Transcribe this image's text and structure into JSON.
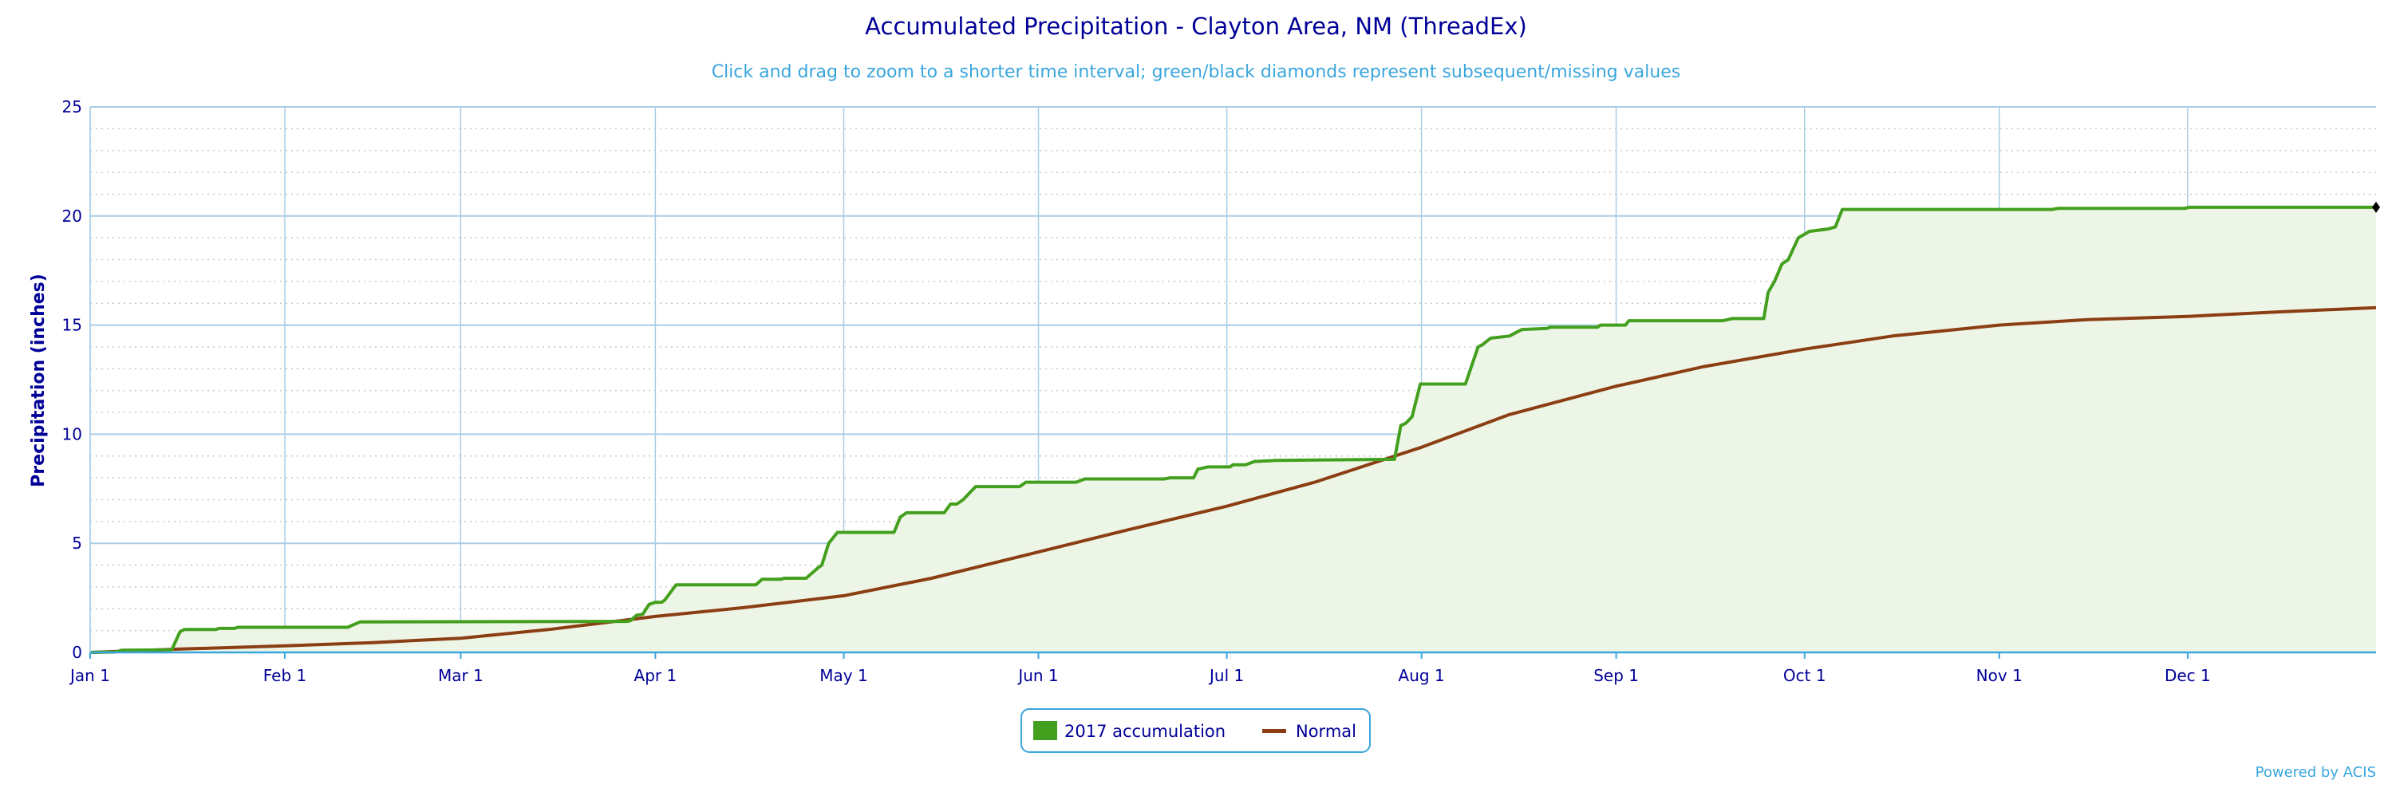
{
  "chart_data": {
    "type": "area",
    "title": "Accumulated Precipitation - Clayton Area, NM (ThreadEx)",
    "subtitle": "Click and drag to zoom to a shorter time interval; green/black diamonds represent subsequent/missing values",
    "xlabel": "",
    "ylabel": "Precipitation (inches)",
    "ylim": [
      0,
      25
    ],
    "xlim_days": [
      0,
      364
    ],
    "grid": true,
    "yticks": [
      0,
      5,
      10,
      15,
      20,
      25
    ],
    "xticks": [
      {
        "label": "Jan 1",
        "day": 0
      },
      {
        "label": "Feb 1",
        "day": 31
      },
      {
        "label": "Mar 1",
        "day": 59
      },
      {
        "label": "Apr 1",
        "day": 90
      },
      {
        "label": "May 1",
        "day": 120
      },
      {
        "label": "Jun 1",
        "day": 151
      },
      {
        "label": "Jul 1",
        "day": 181
      },
      {
        "label": "Aug 1",
        "day": 212
      },
      {
        "label": "Sep 1",
        "day": 243
      },
      {
        "label": "Oct 1",
        "day": 273
      },
      {
        "label": "Nov 1",
        "day": 304
      },
      {
        "label": "Dec 1",
        "day": 334
      }
    ],
    "legend_position": "bottom-center",
    "series": [
      {
        "name": "2017 accumulation",
        "color": "#43a01e",
        "fill": "#edf5e6",
        "points": [
          [
            0,
            0
          ],
          [
            4,
            0.02
          ],
          [
            5,
            0.1
          ],
          [
            13,
            0.12
          ],
          [
            14.3,
            0.95
          ],
          [
            15,
            1.05
          ],
          [
            20,
            1.05
          ],
          [
            20.5,
            1.1
          ],
          [
            23,
            1.1
          ],
          [
            23.5,
            1.15
          ],
          [
            41,
            1.15
          ],
          [
            43,
            1.4
          ],
          [
            85.5,
            1.42
          ],
          [
            86,
            1.45
          ],
          [
            87,
            1.7
          ],
          [
            88,
            1.75
          ],
          [
            89,
            2.2
          ],
          [
            90,
            2.3
          ],
          [
            91,
            2.3
          ],
          [
            91.5,
            2.4
          ],
          [
            93.3,
            3.1
          ],
          [
            106,
            3.1
          ],
          [
            107,
            3.35
          ],
          [
            110,
            3.35
          ],
          [
            110.5,
            3.4
          ],
          [
            114,
            3.4
          ],
          [
            115,
            3.65
          ],
          [
            116,
            3.9
          ],
          [
            116.5,
            4.0
          ],
          [
            117.6,
            5.0
          ],
          [
            119,
            5.5
          ],
          [
            128,
            5.5
          ],
          [
            129,
            6.2
          ],
          [
            130,
            6.4
          ],
          [
            136,
            6.4
          ],
          [
            137,
            6.8
          ],
          [
            138,
            6.8
          ],
          [
            139,
            7.0
          ],
          [
            141,
            7.6
          ],
          [
            148,
            7.6
          ],
          [
            149,
            7.8
          ],
          [
            157,
            7.8
          ],
          [
            158.4,
            7.95
          ],
          [
            171,
            7.95
          ],
          [
            172,
            8.0
          ],
          [
            175.7,
            8.0
          ],
          [
            176.4,
            8.4
          ],
          [
            178,
            8.5
          ],
          [
            181.5,
            8.5
          ],
          [
            182,
            8.6
          ],
          [
            184,
            8.6
          ],
          [
            185.4,
            8.75
          ],
          [
            189,
            8.8
          ],
          [
            207.7,
            8.85
          ],
          [
            208.7,
            10.4
          ],
          [
            209.5,
            10.5
          ],
          [
            210.5,
            10.8
          ],
          [
            211.8,
            12.3
          ],
          [
            219,
            12.3
          ],
          [
            221,
            14.0
          ],
          [
            221.7,
            14.1
          ],
          [
            223,
            14.4
          ],
          [
            226,
            14.5
          ],
          [
            228,
            14.8
          ],
          [
            232,
            14.85
          ],
          [
            232.5,
            14.9
          ],
          [
            240,
            14.9
          ],
          [
            240.5,
            15.0
          ],
          [
            244.5,
            15.0
          ],
          [
            245,
            15.2
          ],
          [
            260,
            15.2
          ],
          [
            261.5,
            15.3
          ],
          [
            266.5,
            15.3
          ],
          [
            267.2,
            16.5
          ],
          [
            268.2,
            17.0
          ],
          [
            269.4,
            17.8
          ],
          [
            270.4,
            18.0
          ],
          [
            272,
            19.0
          ],
          [
            273.8,
            19.3
          ],
          [
            276.7,
            19.4
          ],
          [
            277.9,
            19.5
          ],
          [
            279,
            20.3
          ],
          [
            312.4,
            20.3
          ],
          [
            313.4,
            20.35
          ],
          [
            333.6,
            20.35
          ],
          [
            334.2,
            20.4
          ],
          [
            364,
            20.4
          ]
        ],
        "end_marker": "black-diamond"
      },
      {
        "name": "Normal",
        "color": "#8b3e13",
        "points": [
          [
            0,
            0
          ],
          [
            14,
            0.15
          ],
          [
            31,
            0.3
          ],
          [
            45,
            0.45
          ],
          [
            59,
            0.65
          ],
          [
            73,
            1.05
          ],
          [
            90,
            1.65
          ],
          [
            104,
            2.05
          ],
          [
            120,
            2.6
          ],
          [
            134,
            3.4
          ],
          [
            151,
            4.6
          ],
          [
            165,
            5.6
          ],
          [
            181,
            6.7
          ],
          [
            195,
            7.8
          ],
          [
            212,
            9.4
          ],
          [
            226,
            10.9
          ],
          [
            243,
            12.2
          ],
          [
            257,
            13.1
          ],
          [
            273,
            13.9
          ],
          [
            287,
            14.5
          ],
          [
            304,
            15.0
          ],
          [
            318,
            15.25
          ],
          [
            334,
            15.4
          ],
          [
            348,
            15.6
          ],
          [
            364,
            15.8
          ]
        ]
      }
    ],
    "credit": "Powered by ACIS"
  }
}
